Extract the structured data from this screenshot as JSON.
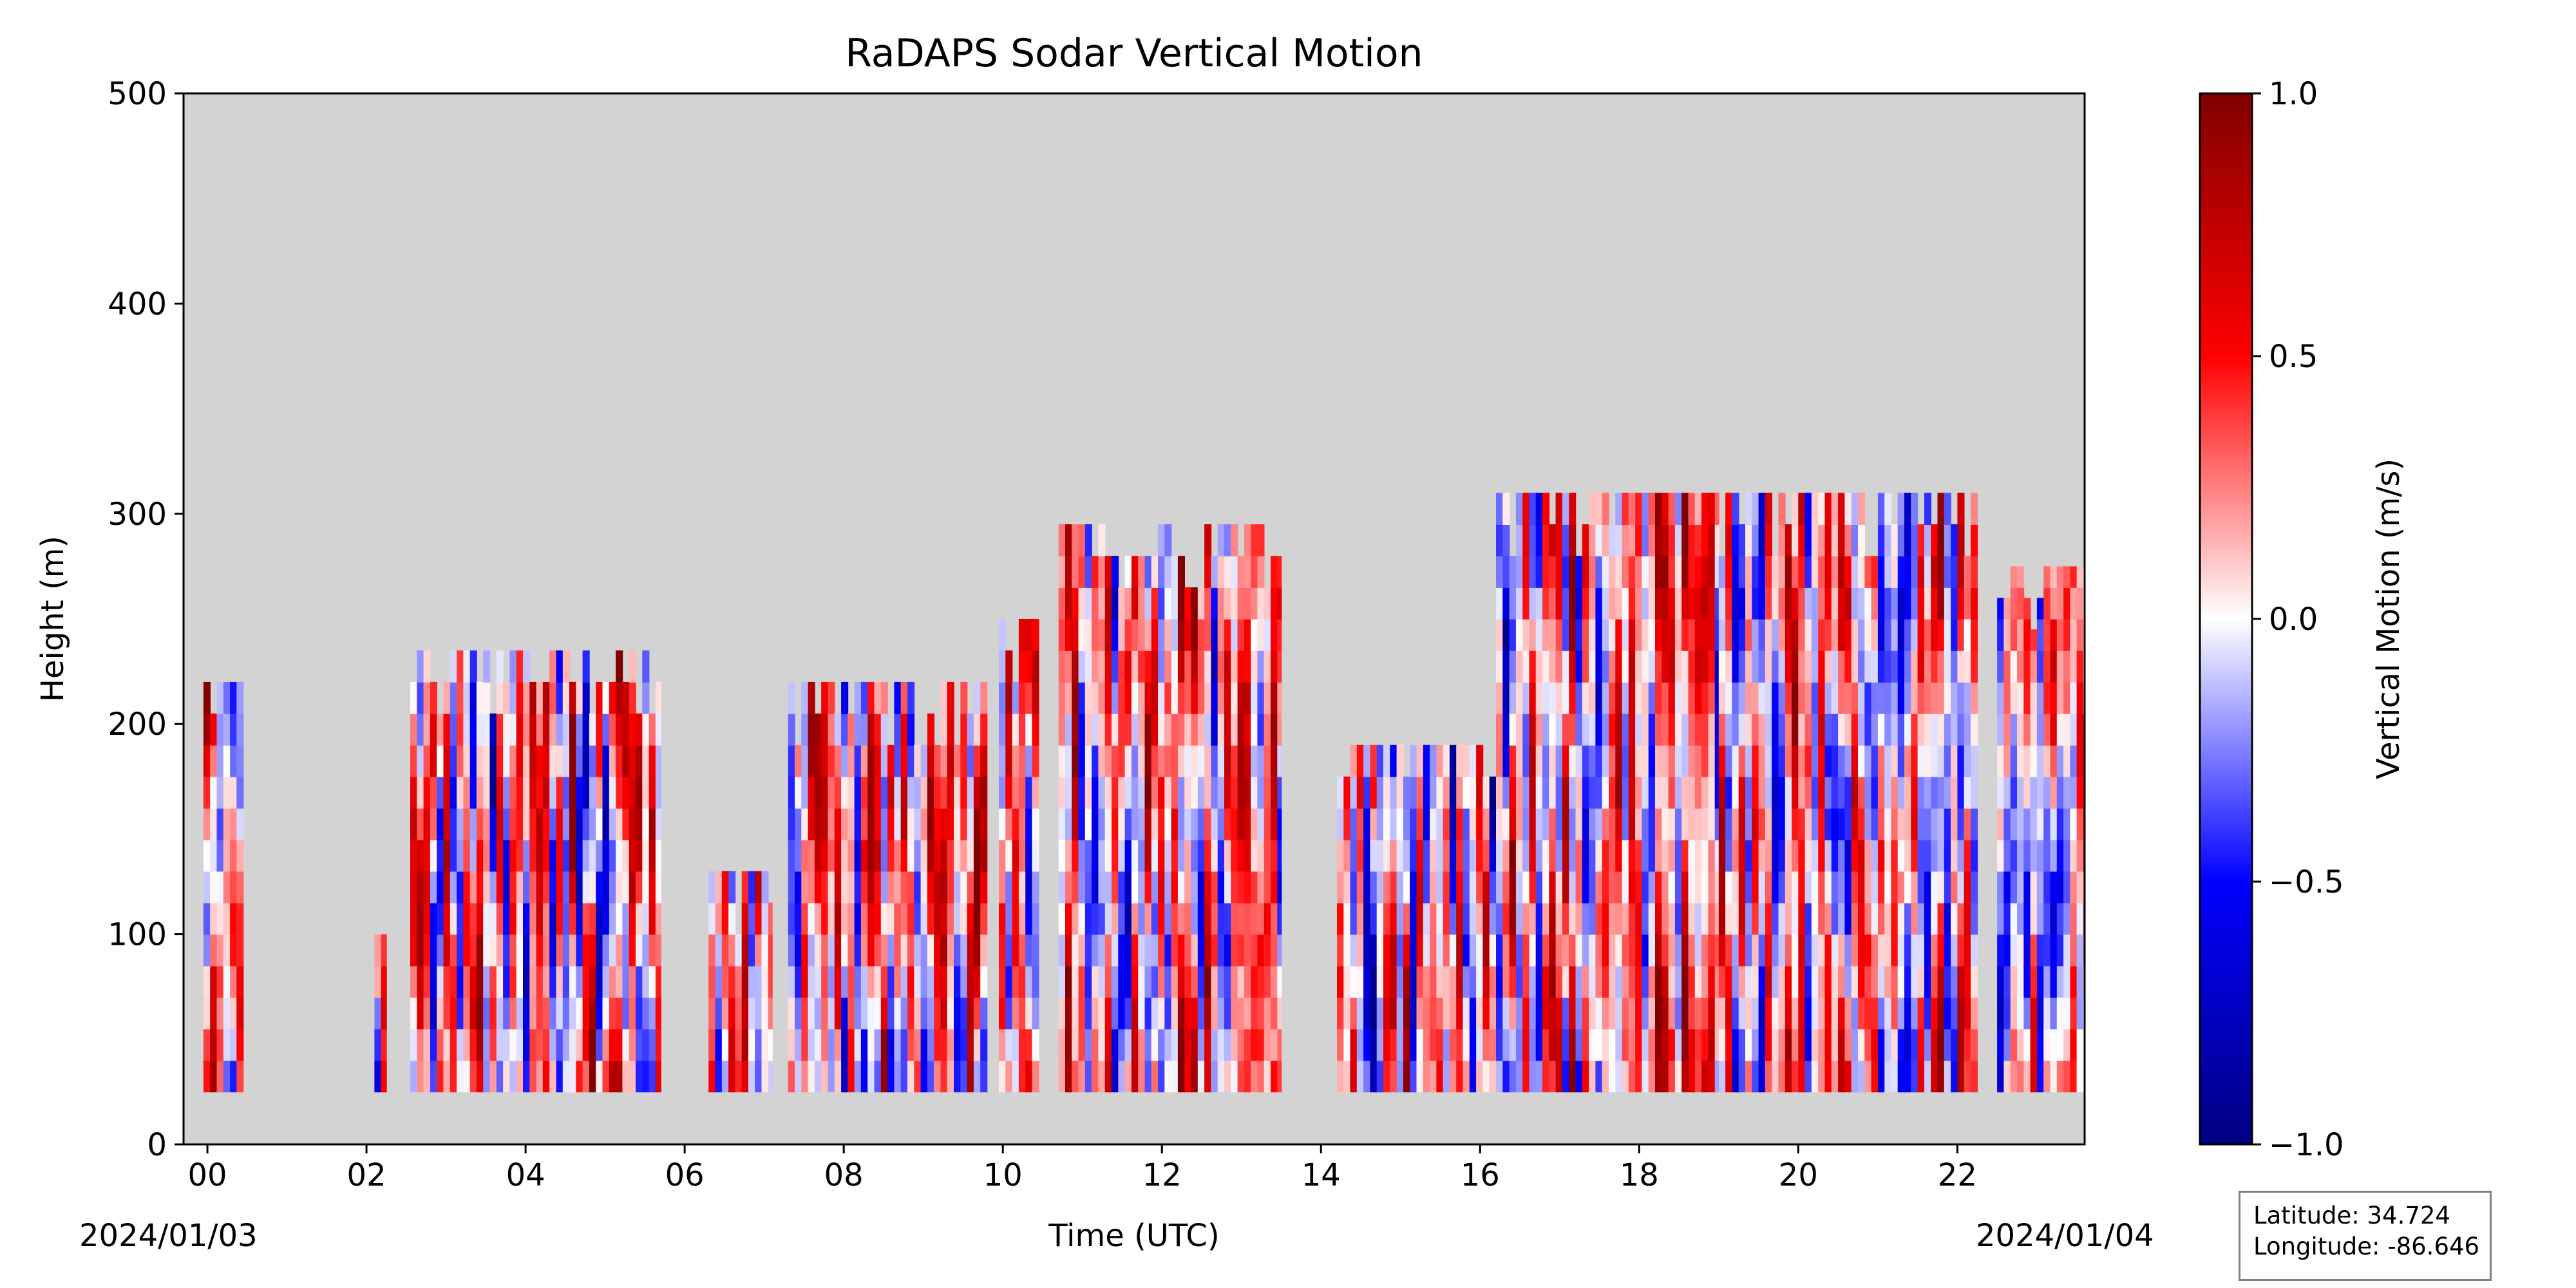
{
  "chart_data": {
    "type": "heatmap",
    "title": "RaDAPS Sodar Vertical Motion",
    "xlabel": "Time (UTC)",
    "ylabel": "Height (m)",
    "x_ticks": [
      "00",
      "02",
      "04",
      "06",
      "08",
      "10",
      "12",
      "14",
      "16",
      "18",
      "20",
      "22"
    ],
    "x_tick_hours": [
      0,
      2,
      4,
      6,
      8,
      10,
      12,
      14,
      16,
      18,
      20,
      22
    ],
    "xlim_hours": [
      -0.3,
      23.6
    ],
    "start_date_label": "2024/01/03",
    "end_date_label": "2024/01/04",
    "y_ticks": [
      0,
      100,
      200,
      300,
      400,
      500
    ],
    "ylim": [
      0,
      500
    ],
    "background_color": "#d3d3d3",
    "colorbar": {
      "label": "Vertical Motion (m/s)",
      "ticks": [
        1.0,
        0.5,
        0.0,
        -0.5,
        -1.0
      ],
      "tick_labels": [
        "1.0",
        "0.5",
        "0.0",
        "−0.5",
        "−1.0"
      ],
      "range": [
        -1.0,
        1.0
      ],
      "colormap": "seismic",
      "colors": [
        "#000080",
        "#0000ff",
        "#ffffff",
        "#ff0000",
        "#800000"
      ]
    },
    "data_min_height_m": 25,
    "segments": [
      {
        "start": -0.05,
        "end": 0.45,
        "top": 220,
        "bias": 0.15
      },
      {
        "start": 2.1,
        "end": 2.25,
        "top": 100,
        "bias": -0.2
      },
      {
        "start": 2.55,
        "end": 5.7,
        "top": 235,
        "bias": 0.1
      },
      {
        "start": 6.3,
        "end": 7.1,
        "top": 130,
        "bias": 0.0
      },
      {
        "start": 7.3,
        "end": 9.8,
        "top": 220,
        "bias": 0.08
      },
      {
        "start": 9.95,
        "end": 10.45,
        "top": 250,
        "bias": 0.2
      },
      {
        "start": 10.7,
        "end": 13.5,
        "top": 295,
        "bias": 0.22
      },
      {
        "start": 14.2,
        "end": 16.2,
        "top": 190,
        "bias": 0.0
      },
      {
        "start": 16.2,
        "end": 19.0,
        "top": 310,
        "bias": 0.15
      },
      {
        "start": 19.0,
        "end": 22.25,
        "top": 310,
        "bias": 0.05
      },
      {
        "start": 22.5,
        "end": 23.6,
        "top": 275,
        "bias": 0.0
      }
    ]
  },
  "info_box": {
    "latitude_label": "Latitude: 34.724",
    "longitude_label": "Longitude: -86.646"
  }
}
